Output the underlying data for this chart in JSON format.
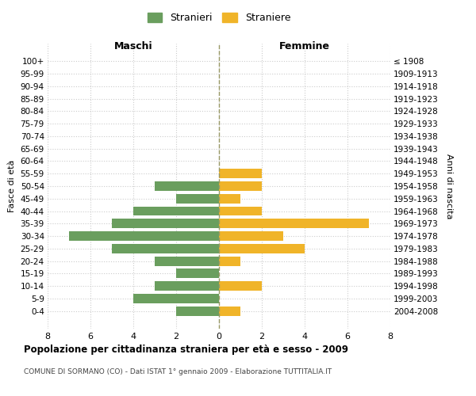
{
  "age_groups": [
    "100+",
    "95-99",
    "90-94",
    "85-89",
    "80-84",
    "75-79",
    "70-74",
    "65-69",
    "60-64",
    "55-59",
    "50-54",
    "45-49",
    "40-44",
    "35-39",
    "30-34",
    "25-29",
    "20-24",
    "15-19",
    "10-14",
    "5-9",
    "0-4"
  ],
  "birth_years": [
    "≤ 1908",
    "1909-1913",
    "1914-1918",
    "1919-1923",
    "1924-1928",
    "1929-1933",
    "1934-1938",
    "1939-1943",
    "1944-1948",
    "1949-1953",
    "1954-1958",
    "1959-1963",
    "1964-1968",
    "1969-1973",
    "1974-1978",
    "1979-1983",
    "1984-1988",
    "1989-1993",
    "1994-1998",
    "1999-2003",
    "2004-2008"
  ],
  "maschi": [
    0,
    0,
    0,
    0,
    0,
    0,
    0,
    0,
    0,
    0,
    3,
    2,
    4,
    5,
    7,
    5,
    3,
    2,
    3,
    4,
    2
  ],
  "femmine": [
    0,
    0,
    0,
    0,
    0,
    0,
    0,
    0,
    0,
    2,
    2,
    1,
    2,
    7,
    3,
    4,
    1,
    0,
    2,
    0,
    1
  ],
  "maschi_color": "#6a9e5e",
  "femmine_color": "#f0b429",
  "title": "Popolazione per cittadinanza straniera per età e sesso - 2009",
  "subtitle": "COMUNE DI SORMANO (CO) - Dati ISTAT 1° gennaio 2009 - Elaborazione TUTTITALIA.IT",
  "xlabel_left": "Maschi",
  "xlabel_right": "Femmine",
  "ylabel_left": "Fasce di età",
  "ylabel_right": "Anni di nascita",
  "legend_maschi": "Stranieri",
  "legend_femmine": "Straniere",
  "xlim": 8,
  "background_color": "#ffffff",
  "grid_color": "#cccccc"
}
